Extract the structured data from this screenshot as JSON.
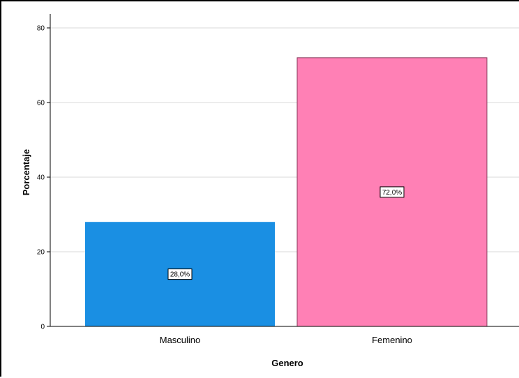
{
  "chart_data": {
    "type": "bar",
    "categories": [
      "Masculino",
      "Femenino"
    ],
    "values": [
      28.0,
      72.0
    ],
    "data_labels": [
      "28,0%",
      "72,0%"
    ],
    "colors": [
      "#1a8fe3",
      "#ff80b5"
    ],
    "title": "",
    "xlabel": "Genero",
    "ylabel": "Porcentaje",
    "ylim": [
      0,
      80
    ],
    "yticks": [
      0,
      20,
      40,
      60,
      80
    ],
    "grid": true,
    "legend": "none"
  }
}
